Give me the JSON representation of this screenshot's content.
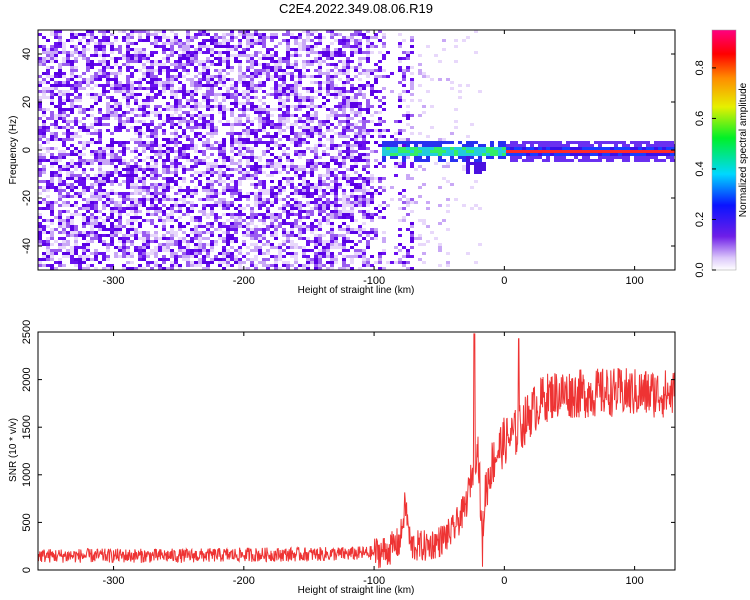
{
  "title": "C2E4.2022.349.08.06.R19",
  "colors": {
    "snr_line": "#ee3333",
    "spectrogram_noise": "#6a10f0",
    "spectrogram_signal": "#33ee66",
    "spectrogram_peak": "#ff2a2a"
  },
  "chart_data": [
    {
      "type": "heatmap",
      "title": "C2E4.2022.349.08.06.R19",
      "xlabel": "Height of straight line (km)",
      "ylabel": "Frequency (Hz)",
      "xlim": [
        -358,
        131
      ],
      "ylim": [
        -50,
        50
      ],
      "x_ticks": [
        -300,
        -200,
        -100,
        0,
        100
      ],
      "y_ticks": [
        -40,
        -20,
        0,
        20,
        40
      ],
      "colorbar": {
        "label": "Normalized spectral amplitude",
        "ticks": [
          "0.0",
          "0.2",
          "0.4",
          "0.6",
          "0.8"
        ],
        "range": [
          0,
          0.95
        ],
        "colormap": "rainbow-white-to-magenta"
      },
      "features": {
        "noise_band_extent_km": [
          -358,
          -70
        ],
        "signal_carrier_frequency_hz": 0,
        "signal_onset_km": -95,
        "strong_carrier_from_km": 0
      }
    },
    {
      "type": "line",
      "xlabel": "Height of straight line (km)",
      "ylabel": "SNR (10 * v/v)",
      "xlim": [
        -358,
        131
      ],
      "ylim": [
        0,
        2500
      ],
      "x_ticks": [
        -300,
        -200,
        -100,
        0,
        100
      ],
      "y_ticks": [
        0,
        500,
        1000,
        1500,
        2000,
        2500
      ],
      "series": [
        {
          "x": [
            -358,
            -300,
            -250,
            -200,
            -150,
            -120,
            -100,
            -90,
            -80,
            -76,
            -72,
            -60,
            -50,
            -40,
            -30,
            -25,
            -20,
            -17,
            -15,
            -10,
            -5,
            0,
            10,
            20,
            30,
            40,
            60,
            80,
            100,
            131
          ],
          "y": [
            150,
            150,
            150,
            160,
            165,
            170,
            180,
            200,
            300,
            700,
            250,
            250,
            300,
            400,
            650,
            1000,
            1300,
            200,
            800,
            1100,
            1250,
            1350,
            1450,
            1650,
            1800,
            1850,
            1850,
            1870,
            1860,
            1850
          ]
        }
      ]
    }
  ]
}
